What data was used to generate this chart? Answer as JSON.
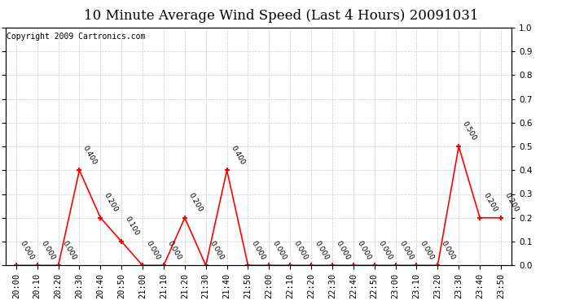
{
  "title": "10 Minute Average Wind Speed (Last 4 Hours) 20091031",
  "copyright": "Copyright 2009 Cartronics.com",
  "x_labels": [
    "20:00",
    "20:10",
    "20:20",
    "20:30",
    "20:40",
    "20:50",
    "21:00",
    "21:10",
    "21:20",
    "21:30",
    "21:40",
    "21:50",
    "22:00",
    "22:10",
    "22:20",
    "22:30",
    "22:40",
    "22:50",
    "23:00",
    "23:10",
    "23:20",
    "23:30",
    "23:40",
    "23:50"
  ],
  "y_values": [
    0.0,
    0.0,
    0.0,
    0.4,
    0.2,
    0.1,
    0.0,
    0.0,
    0.2,
    0.0,
    0.4,
    0.0,
    0.0,
    0.0,
    0.0,
    0.0,
    0.0,
    0.0,
    0.0,
    0.0,
    0.0,
    0.5,
    0.2,
    0.2
  ],
  "line_color": "#ff0000",
  "marker_color": "#ff0000",
  "grid_color": "#cccccc",
  "background_color": "#ffffff",
  "plot_bg_color": "#ffffff",
  "ylim": [
    0.0,
    1.0
  ],
  "yticks": [
    0.0,
    0.1,
    0.2,
    0.3,
    0.4,
    0.5,
    0.6,
    0.7,
    0.8,
    0.9,
    1.0
  ],
  "title_fontsize": 12,
  "copyright_fontsize": 7,
  "label_fontsize": 6.5,
  "tick_fontsize": 7.5
}
